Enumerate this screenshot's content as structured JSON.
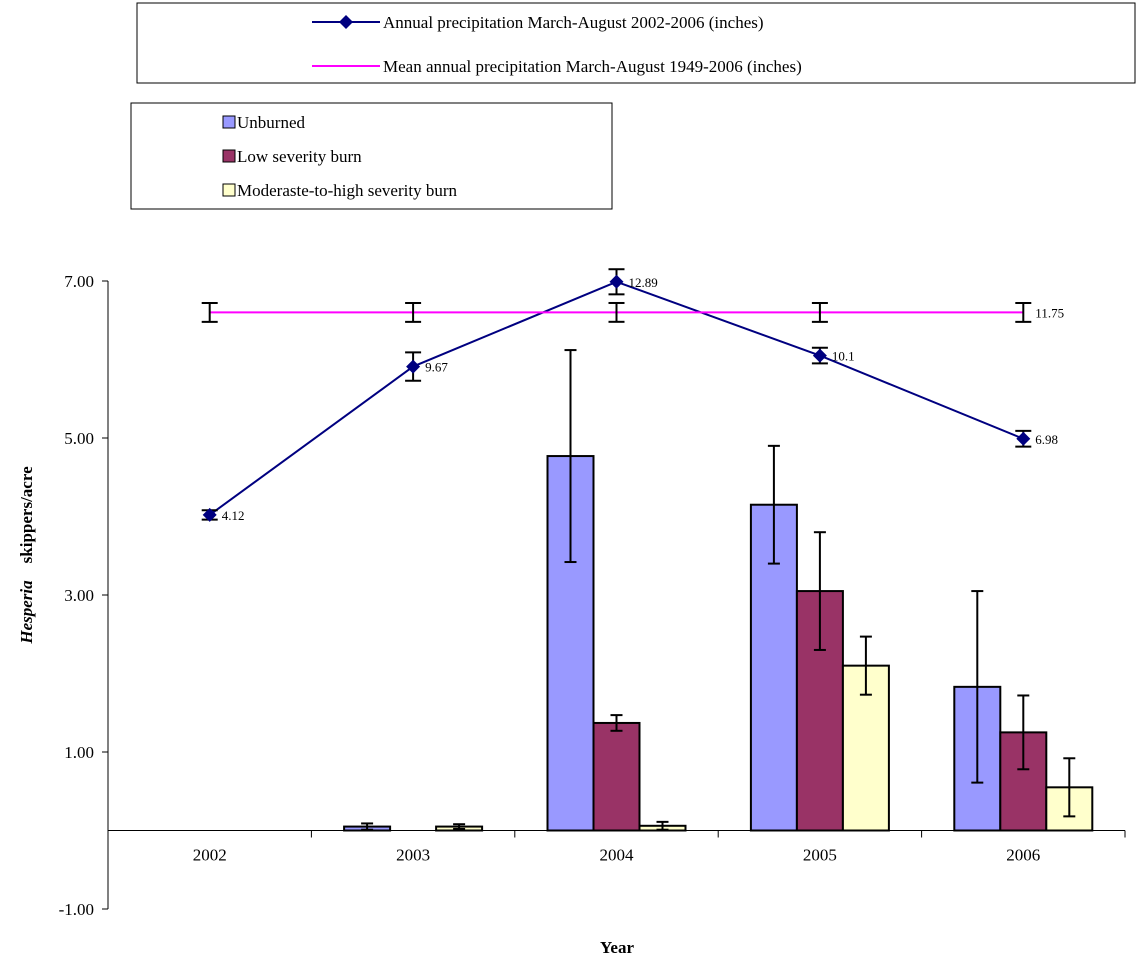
{
  "chart_data": {
    "type": "bar",
    "categories": [
      "2002",
      "2003",
      "2004",
      "2005",
      "2006"
    ],
    "xlabel": "Year",
    "ylabel_italic": "Hesperia",
    "ylabel_rest": "skippers/acre",
    "ylim": [
      -1,
      7
    ],
    "yticks": [
      {
        "value": 7,
        "label": "7.00"
      },
      {
        "value": 5,
        "label": "5.00"
      },
      {
        "value": 3,
        "label": "3.00"
      },
      {
        "value": 1,
        "label": "1.00"
      },
      {
        "value": -1,
        "label": "-1.00"
      }
    ],
    "grid": false,
    "bar_series": [
      {
        "name": "Unburned",
        "color": "#9999ff",
        "values": [
          0,
          0.05,
          4.77,
          4.15,
          1.83
        ],
        "errors": [
          0,
          0.04,
          1.35,
          0.75,
          1.22
        ]
      },
      {
        "name": "Low severity burn",
        "color": "#993366",
        "values": [
          0,
          0,
          1.37,
          3.05,
          1.25
        ],
        "errors": [
          0,
          0,
          0.1,
          0.75,
          0.47
        ]
      },
      {
        "name": "Moderaste-to-high severity burn",
        "color": "#ffffcc",
        "values": [
          0,
          0.05,
          0.06,
          2.1,
          0.55
        ],
        "errors": [
          0,
          0.03,
          0.05,
          0.37,
          0.37
        ]
      }
    ],
    "line_series": [
      {
        "name": "Annual precipitation March-August 2002-2006 (inches)",
        "color": "#000080",
        "marker": "diamond",
        "values": [
          4.02,
          5.91,
          6.99,
          6.05,
          4.99
        ],
        "errors": [
          0.06,
          0.18,
          0.16,
          0.1,
          0.1
        ],
        "labels": [
          "4.12",
          "9.67",
          "12.89",
          "10.1",
          "6.98"
        ]
      },
      {
        "name": "Mean annual precipitation March-August 1949-2006 (inches)",
        "color": "#ff00ff",
        "marker": "none",
        "values": [
          6.6,
          6.6,
          6.6,
          6.6,
          6.6
        ],
        "errors": [
          0.12,
          0.12,
          0.12,
          0.12,
          0.12
        ],
        "labels": [
          "",
          "",
          "",
          "",
          "11.75"
        ]
      }
    ],
    "legend_placement": "top"
  }
}
